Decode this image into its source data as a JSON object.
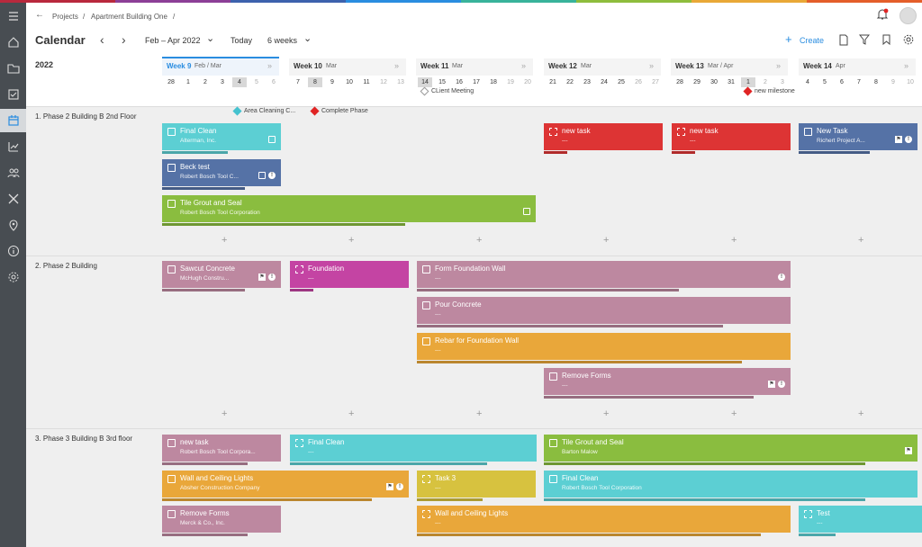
{
  "stripe_colors": [
    "#b9293d",
    "#8c3f97",
    "#3d62ad",
    "#2a8de0",
    "#39b39b",
    "#8ebd3d",
    "#e9a837",
    "#e45e2a"
  ],
  "breadcrumb": {
    "back": "←",
    "projects": "Projects",
    "sep": "/",
    "project": "Apartment Building One",
    "sep2": "/"
  },
  "page_title": "Calendar",
  "toolbar": {
    "prev": "‹",
    "next": "›",
    "range": "Feb – Apr 2022",
    "range_chevron": "⌄",
    "today": "Today",
    "weeks": "6 weeks",
    "weeks_chevron": "⌄",
    "create": "Create"
  },
  "year": "2022",
  "weeks": [
    {
      "label": "Week 9",
      "month": "Feb / Mar",
      "current": true,
      "days": [
        "28",
        "1",
        "2",
        "3",
        "4",
        "5",
        "6"
      ]
    },
    {
      "label": "Week 10",
      "month": "Mar",
      "days": [
        "7",
        "8",
        "9",
        "10",
        "11",
        "12",
        "13"
      ]
    },
    {
      "label": "Week 11",
      "month": "Mar",
      "days": [
        "14",
        "15",
        "16",
        "17",
        "18",
        "19",
        "20"
      ]
    },
    {
      "label": "Week 12",
      "month": "Mar",
      "days": [
        "21",
        "22",
        "23",
        "24",
        "25",
        "26",
        "27"
      ]
    },
    {
      "label": "Week 13",
      "month": "Mar / Apr",
      "days": [
        "28",
        "29",
        "30",
        "31",
        "1",
        "2",
        "3"
      ]
    },
    {
      "label": "Week 14",
      "month": "Apr",
      "days": [
        "4",
        "5",
        "6",
        "7",
        "8",
        "9",
        "10"
      ]
    }
  ],
  "expand_icon": "»",
  "milestones": {
    "client_meeting": "CLient Meeting",
    "new_milestone": "new milestone",
    "area_cleaning": "Area Cleaning C...",
    "complete_phase": "Complete Phase"
  },
  "sections": [
    {
      "title": "1. Phase 2 Building B 2nd Floor"
    },
    {
      "title": "2. Phase 2 Building"
    },
    {
      "title": "3. Phase 3 Building B 3rd floor"
    }
  ],
  "tasks": {
    "t1": {
      "name": "Final Clean",
      "sub": "Alterman, Inc.",
      "color": "#5ccfd3"
    },
    "t2": {
      "name": "Beck test",
      "sub": "Robert Bosch Tool C...",
      "color": "#5572a6"
    },
    "t3": {
      "name": "Tile Grout and Seal",
      "sub": "Robert Bosch Tool Corporation",
      "color": "#8abd3f"
    },
    "t4": {
      "name": "new task",
      "sub": "---",
      "color": "#dd3434"
    },
    "t5": {
      "name": "new task",
      "sub": "---",
      "color": "#dd3434"
    },
    "t6": {
      "name": "New Task",
      "sub": "Richert Project A...",
      "color": "#5572a6"
    },
    "t7": {
      "name": "Sawcut Concrete",
      "sub": "McHugh Constru...",
      "color": "#bd88a0"
    },
    "t8": {
      "name": "Foundation",
      "sub": "---",
      "color": "#c444a3"
    },
    "t9": {
      "name": "Form Foundation Wall",
      "sub": "---",
      "color": "#bd88a0"
    },
    "t10": {
      "name": "Pour Concrete",
      "sub": "---",
      "color": "#bd88a0"
    },
    "t11": {
      "name": "Rebar for Foundation Wall",
      "sub": "---",
      "color": "#e9a73a"
    },
    "t12": {
      "name": "Remove Forms",
      "sub": "---",
      "color": "#bd88a0"
    },
    "t13": {
      "name": "new task",
      "sub": "Robert Bosch Tool Corpora...",
      "color": "#bd88a0"
    },
    "t14": {
      "name": "Final Clean",
      "sub": "---",
      "color": "#5ccfd3"
    },
    "t15": {
      "name": "Tile Grout and Seal",
      "sub": "Barton Malow",
      "color": "#8abd3f"
    },
    "t16": {
      "name": "Wall and Ceiling Lights",
      "sub": "Absher Construction Company",
      "color": "#e9a73a"
    },
    "t17": {
      "name": "Task 3",
      "sub": "---",
      "color": "#d7c23f"
    },
    "t18": {
      "name": "Final Clean",
      "sub": "Robert Bosch Tool Corporation",
      "color": "#5ccfd3"
    },
    "t19": {
      "name": "Remove Forms",
      "sub": "Merck & Co., Inc.",
      "color": "#bd88a0"
    },
    "t20": {
      "name": "Wall and Ceiling Lights",
      "sub": "---",
      "color": "#e9a73a"
    },
    "t21": {
      "name": "Test",
      "sub": "---",
      "color": "#5ccfd3"
    }
  },
  "plus": "+"
}
